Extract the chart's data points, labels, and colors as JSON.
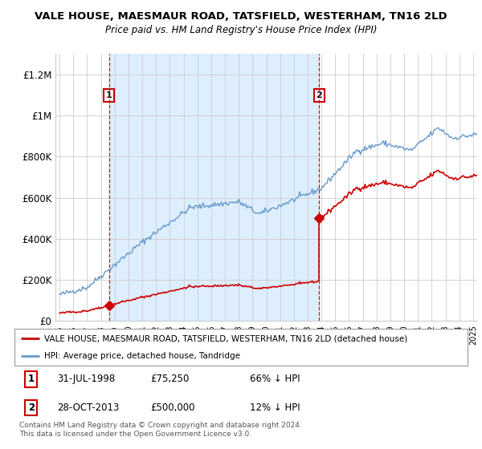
{
  "title": "VALE HOUSE, MAESMAUR ROAD, TATSFIELD, WESTERHAM, TN16 2LD",
  "subtitle": "Price paid vs. HM Land Registry's House Price Index (HPI)",
  "xlim_start": 1994.7,
  "xlim_end": 2025.3,
  "ylim": [
    0,
    1300000
  ],
  "yticks": [
    0,
    200000,
    400000,
    600000,
    800000,
    1000000,
    1200000
  ],
  "ytick_labels": [
    "£0",
    "£200K",
    "£400K",
    "£600K",
    "£800K",
    "£1M",
    "£1.2M"
  ],
  "sale1_x": 1998.58,
  "sale1_y": 75250,
  "sale2_x": 2013.83,
  "sale2_y": 500000,
  "sale1_label": "1",
  "sale2_label": "2",
  "vline1_x": 1998.58,
  "vline2_x": 2013.83,
  "legend_line1": "VALE HOUSE, MAESMAUR ROAD, TATSFIELD, WESTERHAM, TN16 2LD (detached house)",
  "legend_line2": "HPI: Average price, detached house, Tandridge",
  "table_row1": [
    "1",
    "31-JUL-1998",
    "£75,250",
    "66% ↓ HPI"
  ],
  "table_row2": [
    "2",
    "28-OCT-2013",
    "£500,000",
    "12% ↓ HPI"
  ],
  "footer": "Contains HM Land Registry data © Crown copyright and database right 2024.\nThis data is licensed under the Open Government Licence v3.0.",
  "line_red_color": "#cc0000",
  "line_blue_color": "#6699cc",
  "fill_blue_color": "#ddeeff",
  "background_color": "#ffffff",
  "grid_color": "#cccccc",
  "vline_color": "#cc0000"
}
